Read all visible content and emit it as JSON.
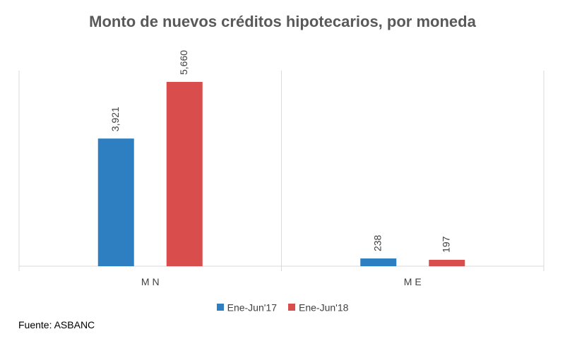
{
  "chart_data": {
    "type": "bar",
    "title": "Monto de nuevos créditos hipotecarios, por moneda",
    "categories": [
      "M N",
      "M E"
    ],
    "series": [
      {
        "name": "Ene-Jun'17",
        "values": [
          3921,
          238
        ],
        "labels": [
          "3,921",
          "238"
        ],
        "color": "#2e7fc1"
      },
      {
        "name": "Ene-Jun'18",
        "values": [
          5660,
          197
        ],
        "labels": [
          "5,660",
          "197"
        ],
        "color": "#d94d4d"
      }
    ],
    "ylim": [
      0,
      5660
    ],
    "grid": false,
    "legend_position": "bottom"
  },
  "source_note": "Fuente: ASBANC"
}
